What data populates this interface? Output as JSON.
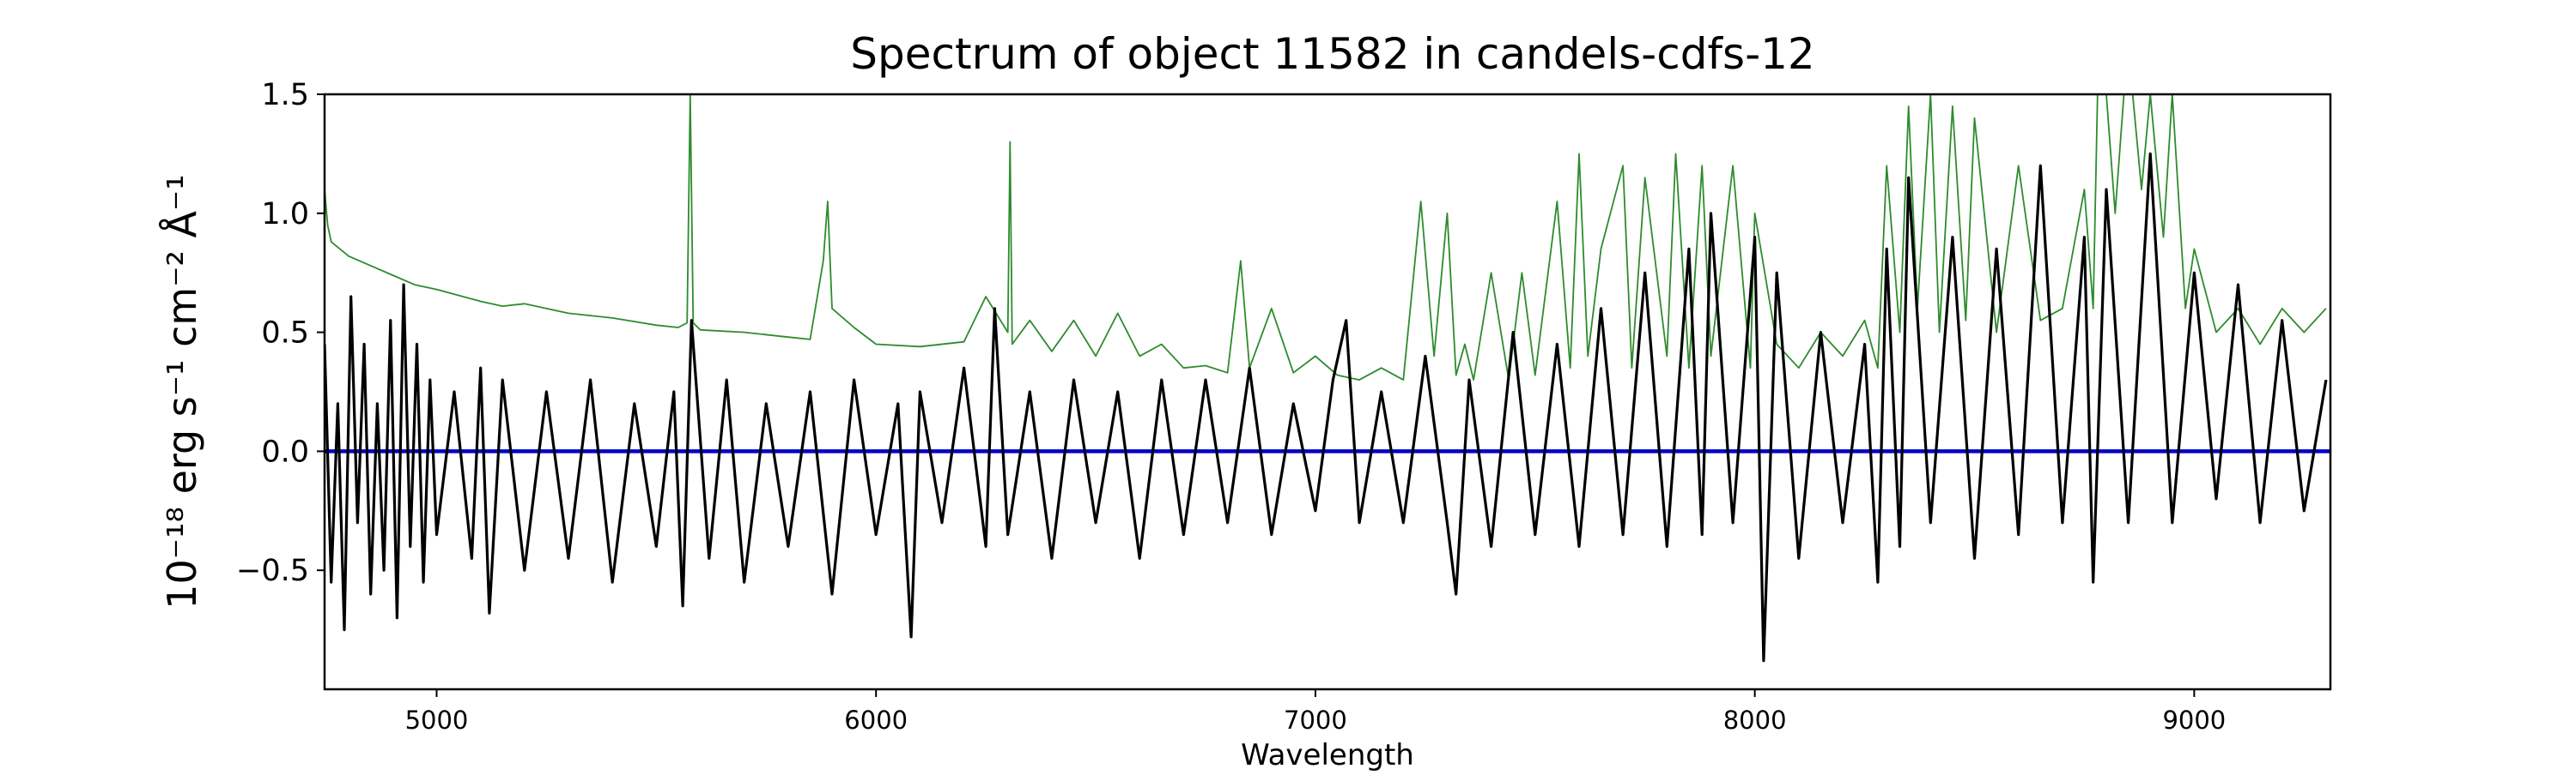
{
  "chart_data": {
    "type": "line",
    "title": "Spectrum of object 11582 in candels-cdfs-12",
    "xlabel": "Wavelength",
    "ylabel": "10⁻¹⁸ erg s⁻¹ cm⁻² Å⁻¹",
    "xlim": [
      4745,
      9310
    ],
    "ylim": [
      -1.0,
      1.5
    ],
    "x_ticks": [
      5000,
      6000,
      7000,
      8000,
      9000
    ],
    "x_tick_labels": [
      "5000",
      "6000",
      "7000",
      "8000",
      "9000"
    ],
    "y_ticks": [
      -0.5,
      0.0,
      0.5,
      1.0,
      1.5
    ],
    "y_tick_labels": [
      "−0.5",
      "0.0",
      "0.5",
      "1.0",
      "1.5"
    ],
    "grid": false,
    "series": [
      {
        "role": "flux",
        "color": "#000000",
        "x": [
          4745,
          4760,
          4775,
          4790,
          4805,
          4820,
          4835,
          4850,
          4865,
          4880,
          4895,
          4910,
          4925,
          4940,
          4955,
          4970,
          4985,
          5000,
          5040,
          5080,
          5100,
          5120,
          5150,
          5200,
          5250,
          5300,
          5350,
          5400,
          5450,
          5500,
          5540,
          5560,
          5580,
          5620,
          5660,
          5700,
          5750,
          5800,
          5850,
          5900,
          5950,
          6000,
          6050,
          6080,
          6100,
          6150,
          6200,
          6250,
          6270,
          6300,
          6350,
          6400,
          6450,
          6500,
          6550,
          6600,
          6650,
          6700,
          6750,
          6800,
          6850,
          6900,
          6950,
          7000,
          7040,
          7070,
          7100,
          7150,
          7200,
          7250,
          7300,
          7320,
          7350,
          7400,
          7450,
          7500,
          7550,
          7600,
          7650,
          7700,
          7750,
          7800,
          7850,
          7880,
          7900,
          7950,
          8000,
          8020,
          8050,
          8100,
          8150,
          8200,
          8250,
          8280,
          8300,
          8330,
          8350,
          8400,
          8450,
          8500,
          8550,
          8600,
          8650,
          8700,
          8750,
          8770,
          8800,
          8850,
          8900,
          8950,
          9000,
          9050,
          9100,
          9150,
          9200,
          9250,
          9300
        ],
        "y": [
          0.45,
          -0.55,
          0.2,
          -0.75,
          0.65,
          -0.3,
          0.45,
          -0.6,
          0.2,
          -0.5,
          0.55,
          -0.7,
          0.7,
          -0.4,
          0.45,
          -0.55,
          0.3,
          -0.35,
          0.25,
          -0.45,
          0.35,
          -0.68,
          0.3,
          -0.5,
          0.25,
          -0.45,
          0.3,
          -0.55,
          0.2,
          -0.4,
          0.25,
          -0.65,
          0.55,
          -0.45,
          0.3,
          -0.55,
          0.2,
          -0.4,
          0.25,
          -0.6,
          0.3,
          -0.35,
          0.2,
          -0.78,
          0.25,
          -0.3,
          0.35,
          -0.4,
          0.6,
          -0.35,
          0.25,
          -0.45,
          0.3,
          -0.3,
          0.25,
          -0.45,
          0.3,
          -0.35,
          0.3,
          -0.3,
          0.35,
          -0.35,
          0.2,
          -0.25,
          0.3,
          0.55,
          -0.3,
          0.25,
          -0.3,
          0.4,
          -0.3,
          -0.6,
          0.3,
          -0.4,
          0.5,
          -0.35,
          0.45,
          -0.4,
          0.6,
          -0.35,
          0.75,
          -0.4,
          0.85,
          -0.35,
          1.0,
          -0.3,
          0.9,
          -0.88,
          0.75,
          -0.45,
          0.5,
          -0.3,
          0.45,
          -0.55,
          0.85,
          -0.4,
          1.15,
          -0.3,
          0.9,
          -0.45,
          0.85,
          -0.35,
          1.2,
          -0.3,
          0.9,
          -0.55,
          1.1,
          -0.3,
          1.25,
          -0.3,
          0.75,
          -0.2,
          0.7,
          -0.3,
          0.55,
          -0.25,
          0.3
        ]
      },
      {
        "role": "sky",
        "color": "#2e8b2e",
        "x": [
          4745,
          4752,
          4760,
          4800,
          4850,
          4900,
          4950,
          5000,
          5100,
          5150,
          5200,
          5300,
          5400,
          5500,
          5550,
          5570,
          5577,
          5584,
          5600,
          5700,
          5800,
          5850,
          5880,
          5890,
          5900,
          5950,
          6000,
          6100,
          6200,
          6250,
          6300,
          6305,
          6310,
          6350,
          6400,
          6450,
          6500,
          6550,
          6600,
          6650,
          6700,
          6750,
          6800,
          6830,
          6850,
          6900,
          6950,
          7000,
          7050,
          7100,
          7150,
          7200,
          7240,
          7270,
          7300,
          7320,
          7340,
          7360,
          7400,
          7440,
          7470,
          7500,
          7550,
          7580,
          7600,
          7620,
          7650,
          7700,
          7720,
          7750,
          7800,
          7820,
          7850,
          7880,
          7900,
          7950,
          7990,
          8000,
          8050,
          8100,
          8150,
          8200,
          8250,
          8280,
          8300,
          8330,
          8350,
          8370,
          8400,
          8420,
          8450,
          8480,
          8500,
          8550,
          8600,
          8650,
          8700,
          8750,
          8770,
          8780,
          8800,
          8820,
          8840,
          8860,
          8880,
          8900,
          8930,
          8950,
          8980,
          9000,
          9050,
          9100,
          9150,
          9200,
          9250,
          9300
        ],
        "y": [
          1.1,
          0.95,
          0.88,
          0.82,
          0.78,
          0.74,
          0.7,
          0.68,
          0.63,
          0.61,
          0.62,
          0.58,
          0.56,
          0.53,
          0.52,
          0.54,
          1.5,
          0.54,
          0.51,
          0.5,
          0.48,
          0.47,
          0.8,
          1.05,
          0.6,
          0.52,
          0.45,
          0.44,
          0.46,
          0.65,
          0.5,
          1.3,
          0.45,
          0.55,
          0.42,
          0.55,
          0.4,
          0.58,
          0.4,
          0.45,
          0.35,
          0.36,
          0.33,
          0.8,
          0.35,
          0.6,
          0.33,
          0.4,
          0.32,
          0.3,
          0.35,
          0.3,
          1.05,
          0.4,
          1.0,
          0.32,
          0.45,
          0.3,
          0.75,
          0.3,
          0.75,
          0.32,
          1.05,
          0.35,
          1.25,
          0.4,
          0.85,
          1.2,
          0.35,
          1.15,
          0.4,
          1.25,
          0.35,
          1.2,
          0.4,
          1.2,
          0.35,
          1.0,
          0.45,
          0.35,
          0.5,
          0.4,
          0.55,
          0.35,
          1.2,
          0.5,
          1.45,
          0.6,
          1.5,
          0.5,
          1.45,
          0.55,
          1.4,
          0.5,
          1.2,
          0.55,
          0.6,
          1.1,
          0.6,
          1.5,
          1.5,
          1.0,
          1.5,
          1.5,
          1.1,
          1.5,
          0.9,
          1.5,
          0.6,
          0.85,
          0.5,
          0.6,
          0.45,
          0.6,
          0.5,
          0.6
        ]
      },
      {
        "role": "zero",
        "color": "#0000cc",
        "x": [
          4745,
          9310
        ],
        "y": [
          0.0,
          0.0
        ]
      }
    ]
  }
}
